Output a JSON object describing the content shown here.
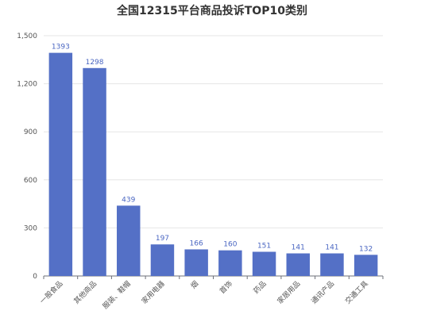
{
  "chart_data": {
    "type": "bar",
    "title": "全国12315平台商品投诉TOP10类别",
    "xlabel": "",
    "ylabel": "",
    "categories": [
      "一般食品",
      "其他商品",
      "服装、鞋帽",
      "家用电器",
      "烟",
      "首饰",
      "药品",
      "家居用品",
      "通讯产品",
      "交通工具"
    ],
    "values": [
      1393,
      1298,
      439,
      197,
      166,
      160,
      151,
      141,
      141,
      132
    ],
    "ylim": [
      0,
      1500
    ],
    "yticks": [
      0,
      300,
      600,
      900,
      1200,
      1500
    ],
    "ytick_labels": [
      "0",
      "300",
      "600",
      "900",
      "1,200",
      "1,500"
    ],
    "grid": true,
    "legend": "none",
    "bar_color": "#5470c6",
    "data_label_color": "#4a66c2"
  }
}
